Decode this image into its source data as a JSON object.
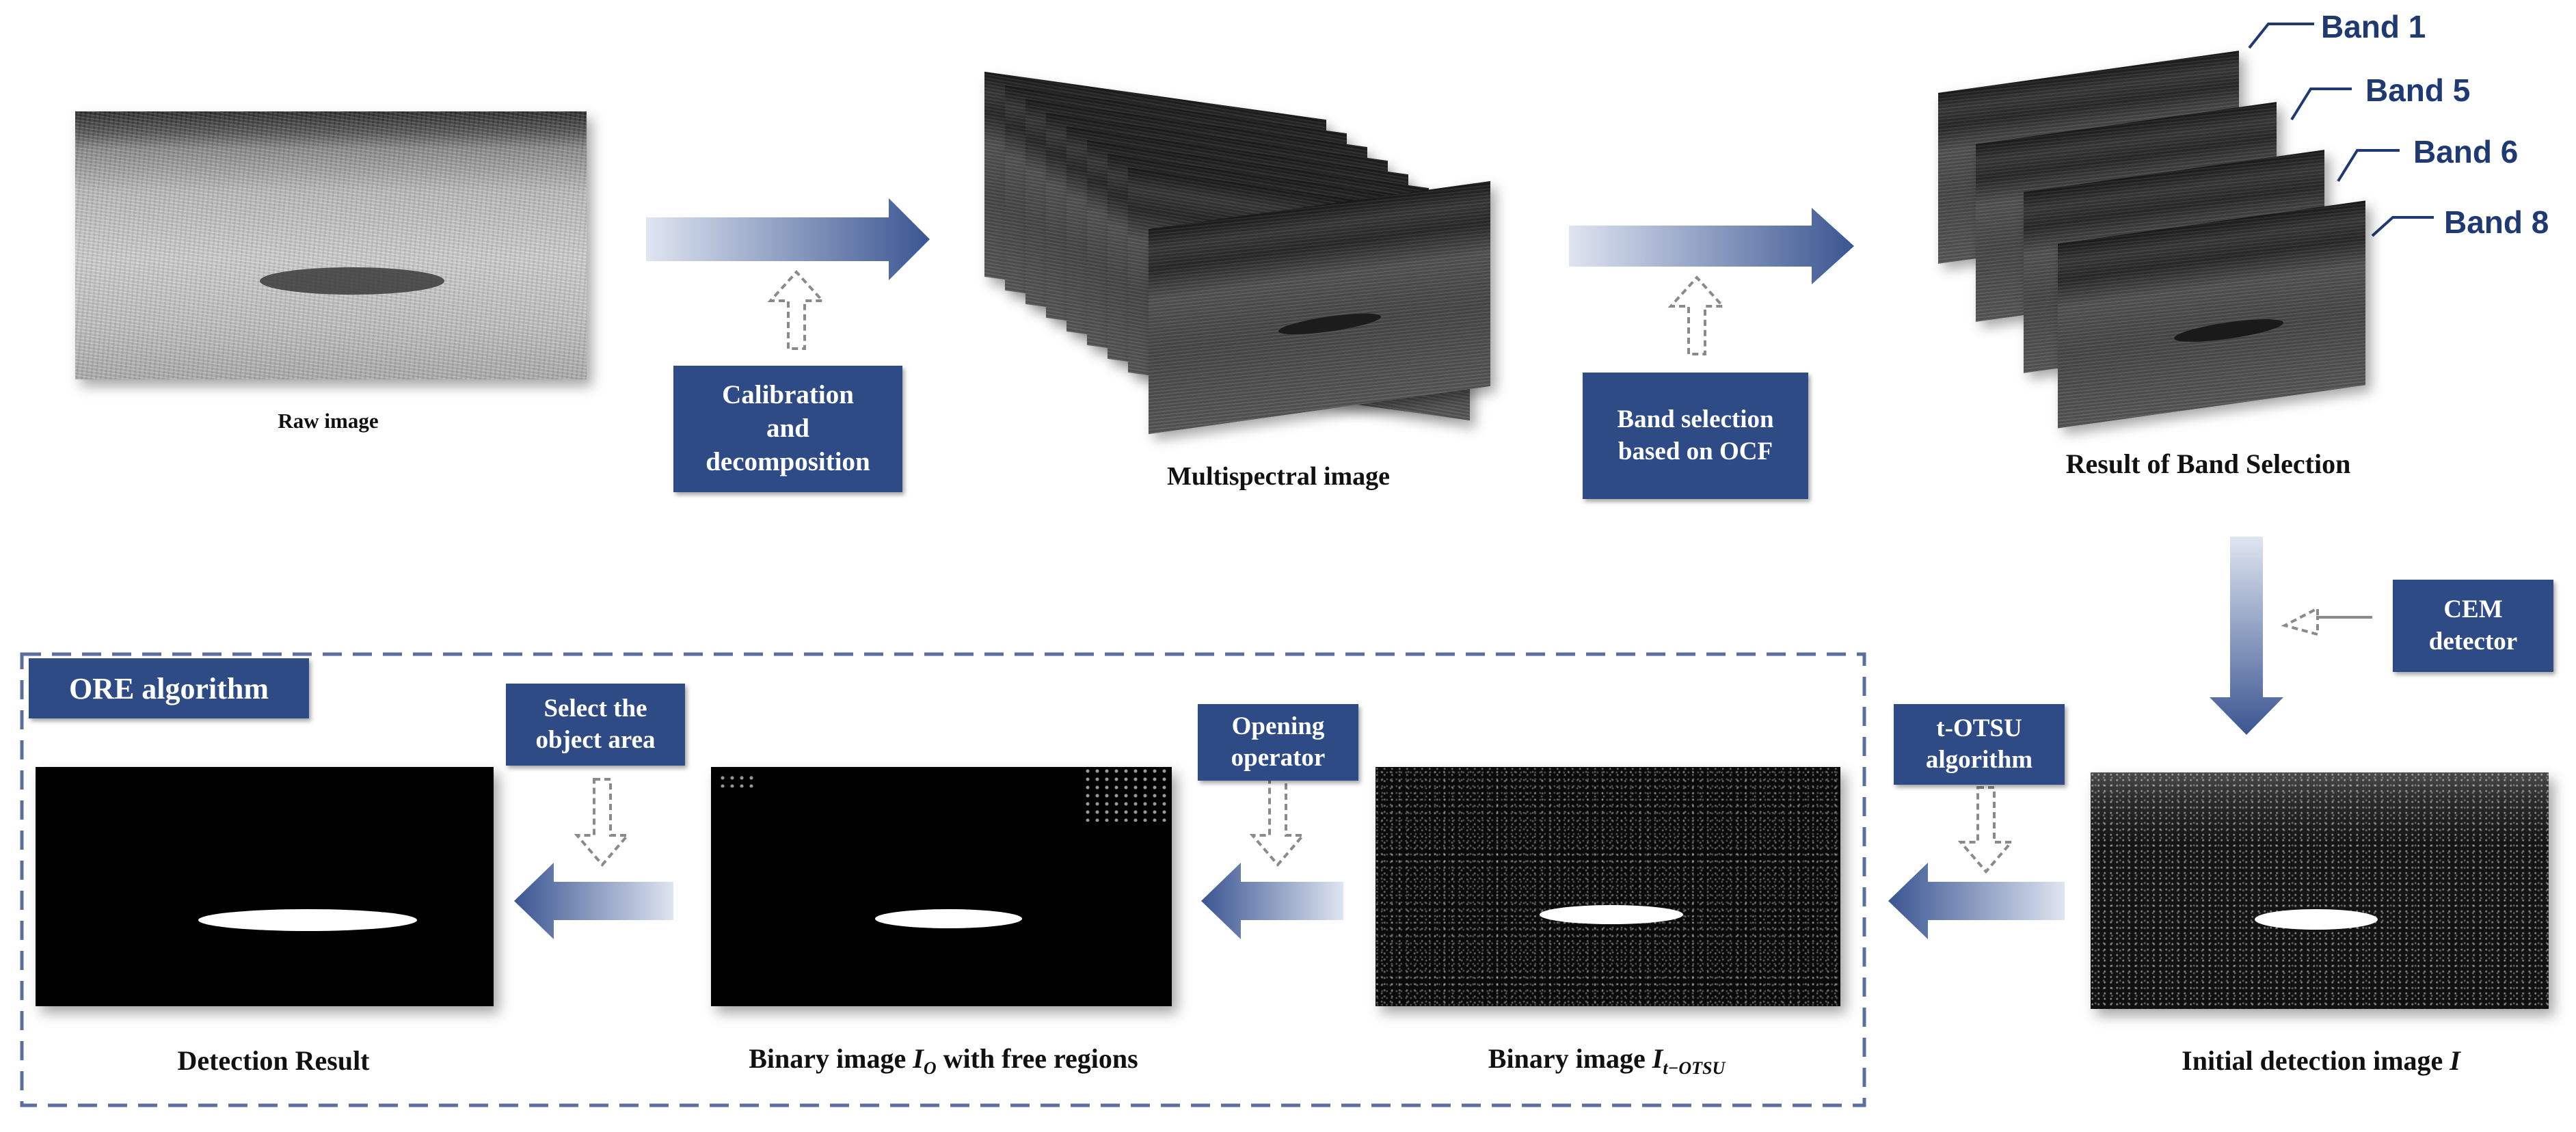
{
  "captions": {
    "raw": "Raw image",
    "multispectral": "Multispectral image",
    "band_selection_result": "Result of Band Selection",
    "initial_detection": "Initial detection image",
    "initial_detection_var": "I",
    "binary_otsu": "Binary image",
    "binary_otsu_var": "I",
    "binary_otsu_sub": "t−OTSU",
    "binary_open": "Binary image",
    "binary_open_var": "I",
    "binary_open_sub": "O",
    "binary_open_tail": "with free regions",
    "detection_result": "Detection Result"
  },
  "boxes": {
    "calibration": [
      "Calibration",
      "and",
      "decomposition"
    ],
    "band_selection": [
      "Band selection",
      "based on OCF"
    ],
    "cem": [
      "CEM",
      "detector"
    ],
    "totsu": [
      "t-OTSU",
      "algorithm"
    ],
    "opening": [
      "Opening",
      "operator"
    ],
    "select": [
      "Select the",
      "object area"
    ],
    "ore": "ORE algorithm"
  },
  "bands": [
    "Band 1",
    "Band 5",
    "Band 6",
    "Band 8"
  ],
  "colors": {
    "box_fill": "#2f4b86",
    "band_text": "#1f3a73",
    "arrow_dark": "#3a5591",
    "arrow_light": "#dfe5f1",
    "dashed_border": "#5a6f9e"
  }
}
